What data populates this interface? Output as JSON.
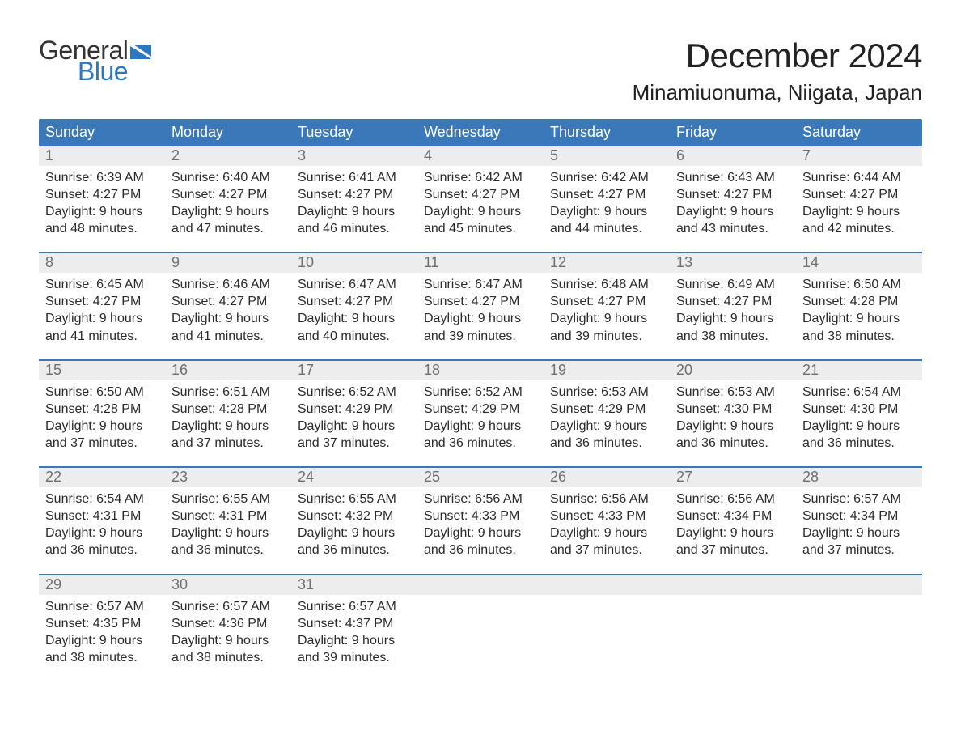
{
  "brand": {
    "word1": "General",
    "word2": "Blue"
  },
  "header": {
    "title": "December 2024",
    "location": "Minamiuonuma, Niigata, Japan"
  },
  "colors": {
    "header_blue": "#3b78b9",
    "header_text": "#ffffff",
    "daynum_row_bg": "#ededed",
    "daynum_text": "#6f6f6f",
    "week_rule": "#3b78b9",
    "logo_dark": "#333333",
    "logo_blue": "#2d77bf",
    "page_bg": "#ffffff",
    "body_text": "#2b2b2b"
  },
  "typography": {
    "title_fontsize_pt": 32,
    "location_fontsize_pt": 20,
    "dow_fontsize_pt": 14,
    "daynum_fontsize_pt": 14,
    "body_fontsize_pt": 12,
    "font_family": "Helvetica/Arial sans-serif"
  },
  "calendar": {
    "type": "table",
    "columns": [
      "Sunday",
      "Monday",
      "Tuesday",
      "Wednesday",
      "Thursday",
      "Friday",
      "Saturday"
    ],
    "weeks": [
      {
        "days": [
          {
            "num": "1",
            "sunrise": "Sunrise: 6:39 AM",
            "sunset": "Sunset: 4:27 PM",
            "daylight1": "Daylight: 9 hours",
            "daylight2": "and 48 minutes."
          },
          {
            "num": "2",
            "sunrise": "Sunrise: 6:40 AM",
            "sunset": "Sunset: 4:27 PM",
            "daylight1": "Daylight: 9 hours",
            "daylight2": "and 47 minutes."
          },
          {
            "num": "3",
            "sunrise": "Sunrise: 6:41 AM",
            "sunset": "Sunset: 4:27 PM",
            "daylight1": "Daylight: 9 hours",
            "daylight2": "and 46 minutes."
          },
          {
            "num": "4",
            "sunrise": "Sunrise: 6:42 AM",
            "sunset": "Sunset: 4:27 PM",
            "daylight1": "Daylight: 9 hours",
            "daylight2": "and 45 minutes."
          },
          {
            "num": "5",
            "sunrise": "Sunrise: 6:42 AM",
            "sunset": "Sunset: 4:27 PM",
            "daylight1": "Daylight: 9 hours",
            "daylight2": "and 44 minutes."
          },
          {
            "num": "6",
            "sunrise": "Sunrise: 6:43 AM",
            "sunset": "Sunset: 4:27 PM",
            "daylight1": "Daylight: 9 hours",
            "daylight2": "and 43 minutes."
          },
          {
            "num": "7",
            "sunrise": "Sunrise: 6:44 AM",
            "sunset": "Sunset: 4:27 PM",
            "daylight1": "Daylight: 9 hours",
            "daylight2": "and 42 minutes."
          }
        ]
      },
      {
        "days": [
          {
            "num": "8",
            "sunrise": "Sunrise: 6:45 AM",
            "sunset": "Sunset: 4:27 PM",
            "daylight1": "Daylight: 9 hours",
            "daylight2": "and 41 minutes."
          },
          {
            "num": "9",
            "sunrise": "Sunrise: 6:46 AM",
            "sunset": "Sunset: 4:27 PM",
            "daylight1": "Daylight: 9 hours",
            "daylight2": "and 41 minutes."
          },
          {
            "num": "10",
            "sunrise": "Sunrise: 6:47 AM",
            "sunset": "Sunset: 4:27 PM",
            "daylight1": "Daylight: 9 hours",
            "daylight2": "and 40 minutes."
          },
          {
            "num": "11",
            "sunrise": "Sunrise: 6:47 AM",
            "sunset": "Sunset: 4:27 PM",
            "daylight1": "Daylight: 9 hours",
            "daylight2": "and 39 minutes."
          },
          {
            "num": "12",
            "sunrise": "Sunrise: 6:48 AM",
            "sunset": "Sunset: 4:27 PM",
            "daylight1": "Daylight: 9 hours",
            "daylight2": "and 39 minutes."
          },
          {
            "num": "13",
            "sunrise": "Sunrise: 6:49 AM",
            "sunset": "Sunset: 4:27 PM",
            "daylight1": "Daylight: 9 hours",
            "daylight2": "and 38 minutes."
          },
          {
            "num": "14",
            "sunrise": "Sunrise: 6:50 AM",
            "sunset": "Sunset: 4:28 PM",
            "daylight1": "Daylight: 9 hours",
            "daylight2": "and 38 minutes."
          }
        ]
      },
      {
        "days": [
          {
            "num": "15",
            "sunrise": "Sunrise: 6:50 AM",
            "sunset": "Sunset: 4:28 PM",
            "daylight1": "Daylight: 9 hours",
            "daylight2": "and 37 minutes."
          },
          {
            "num": "16",
            "sunrise": "Sunrise: 6:51 AM",
            "sunset": "Sunset: 4:28 PM",
            "daylight1": "Daylight: 9 hours",
            "daylight2": "and 37 minutes."
          },
          {
            "num": "17",
            "sunrise": "Sunrise: 6:52 AM",
            "sunset": "Sunset: 4:29 PM",
            "daylight1": "Daylight: 9 hours",
            "daylight2": "and 37 minutes."
          },
          {
            "num": "18",
            "sunrise": "Sunrise: 6:52 AM",
            "sunset": "Sunset: 4:29 PM",
            "daylight1": "Daylight: 9 hours",
            "daylight2": "and 36 minutes."
          },
          {
            "num": "19",
            "sunrise": "Sunrise: 6:53 AM",
            "sunset": "Sunset: 4:29 PM",
            "daylight1": "Daylight: 9 hours",
            "daylight2": "and 36 minutes."
          },
          {
            "num": "20",
            "sunrise": "Sunrise: 6:53 AM",
            "sunset": "Sunset: 4:30 PM",
            "daylight1": "Daylight: 9 hours",
            "daylight2": "and 36 minutes."
          },
          {
            "num": "21",
            "sunrise": "Sunrise: 6:54 AM",
            "sunset": "Sunset: 4:30 PM",
            "daylight1": "Daylight: 9 hours",
            "daylight2": "and 36 minutes."
          }
        ]
      },
      {
        "days": [
          {
            "num": "22",
            "sunrise": "Sunrise: 6:54 AM",
            "sunset": "Sunset: 4:31 PM",
            "daylight1": "Daylight: 9 hours",
            "daylight2": "and 36 minutes."
          },
          {
            "num": "23",
            "sunrise": "Sunrise: 6:55 AM",
            "sunset": "Sunset: 4:31 PM",
            "daylight1": "Daylight: 9 hours",
            "daylight2": "and 36 minutes."
          },
          {
            "num": "24",
            "sunrise": "Sunrise: 6:55 AM",
            "sunset": "Sunset: 4:32 PM",
            "daylight1": "Daylight: 9 hours",
            "daylight2": "and 36 minutes."
          },
          {
            "num": "25",
            "sunrise": "Sunrise: 6:56 AM",
            "sunset": "Sunset: 4:33 PM",
            "daylight1": "Daylight: 9 hours",
            "daylight2": "and 36 minutes."
          },
          {
            "num": "26",
            "sunrise": "Sunrise: 6:56 AM",
            "sunset": "Sunset: 4:33 PM",
            "daylight1": "Daylight: 9 hours",
            "daylight2": "and 37 minutes."
          },
          {
            "num": "27",
            "sunrise": "Sunrise: 6:56 AM",
            "sunset": "Sunset: 4:34 PM",
            "daylight1": "Daylight: 9 hours",
            "daylight2": "and 37 minutes."
          },
          {
            "num": "28",
            "sunrise": "Sunrise: 6:57 AM",
            "sunset": "Sunset: 4:34 PM",
            "daylight1": "Daylight: 9 hours",
            "daylight2": "and 37 minutes."
          }
        ]
      },
      {
        "days": [
          {
            "num": "29",
            "sunrise": "Sunrise: 6:57 AM",
            "sunset": "Sunset: 4:35 PM",
            "daylight1": "Daylight: 9 hours",
            "daylight2": "and 38 minutes."
          },
          {
            "num": "30",
            "sunrise": "Sunrise: 6:57 AM",
            "sunset": "Sunset: 4:36 PM",
            "daylight1": "Daylight: 9 hours",
            "daylight2": "and 38 minutes."
          },
          {
            "num": "31",
            "sunrise": "Sunrise: 6:57 AM",
            "sunset": "Sunset: 4:37 PM",
            "daylight1": "Daylight: 9 hours",
            "daylight2": "and 39 minutes."
          },
          {
            "empty": true
          },
          {
            "empty": true
          },
          {
            "empty": true
          },
          {
            "empty": true
          }
        ]
      }
    ]
  }
}
